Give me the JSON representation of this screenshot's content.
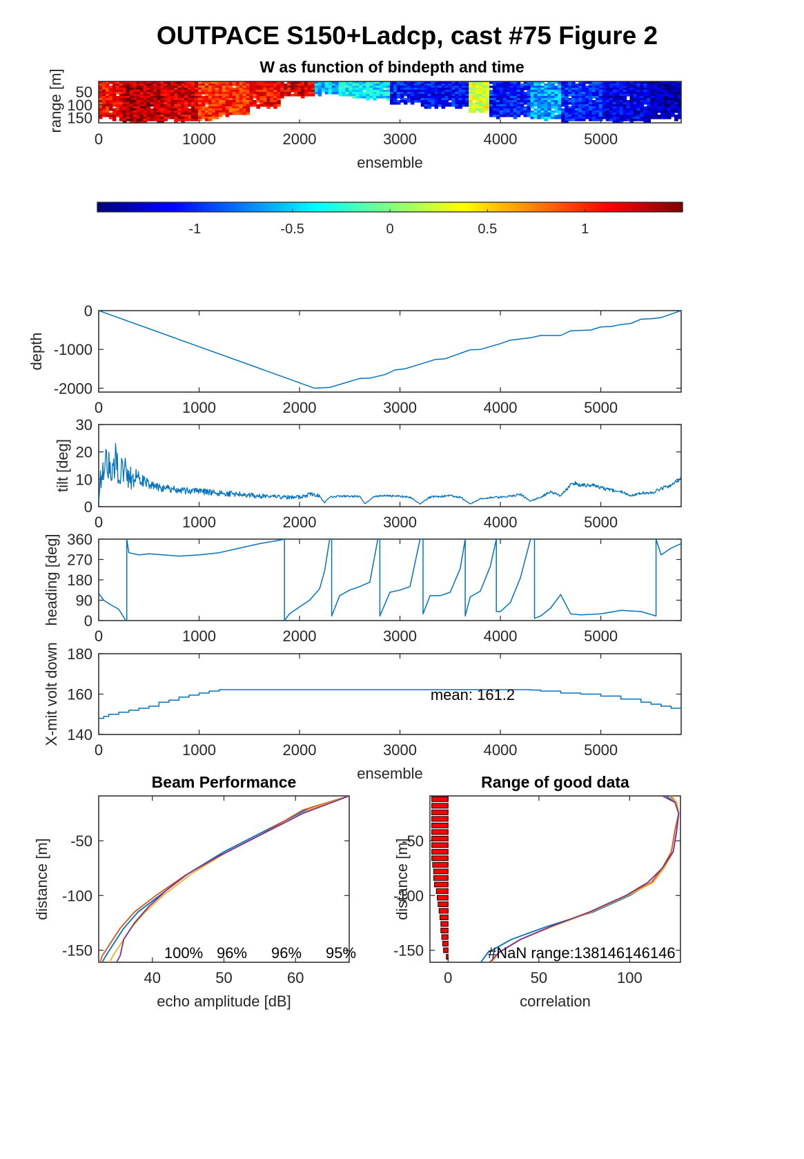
{
  "figure": {
    "title": "OUTPACE S150+Ladcp, cast #75 Figure 2",
    "colors": {
      "line": "#0072BD",
      "orange": "#D95319",
      "yellow": "#EDB120",
      "purple": "#7E2F8E",
      "bar": "#FF0000"
    }
  },
  "chart_data": [
    {
      "id": "w-bindepth-time",
      "type": "heatmap",
      "title": "W as function of bindepth and time",
      "xlabel": "ensemble",
      "ylabel": "range [m]",
      "xlim": [
        0,
        5800
      ],
      "ylim": [
        170,
        10
      ],
      "xticks": [
        0,
        1000,
        2000,
        3000,
        4000,
        5000
      ],
      "yticks": [
        50,
        100,
        150
      ],
      "colormap": "jet",
      "clim": [
        -1.5,
        1.5
      ],
      "colorbar_ticks": [
        -1,
        -0.5,
        0,
        0.5,
        1
      ],
      "columns": [
        {
          "x0": 0,
          "x1": 100,
          "w": 1.1,
          "bottom": 150
        },
        {
          "x0": 100,
          "x1": 250,
          "w": 1.15,
          "bottom": 160
        },
        {
          "x0": 250,
          "x1": 600,
          "w": 1.35,
          "bottom": 170
        },
        {
          "x0": 600,
          "x1": 1000,
          "w": 1.25,
          "bottom": 165
        },
        {
          "x0": 1000,
          "x1": 1200,
          "w": 1.0,
          "bottom": 158
        },
        {
          "x0": 1200,
          "x1": 1500,
          "w": 1.0,
          "bottom": 140
        },
        {
          "x0": 1500,
          "x1": 1800,
          "w": 1.1,
          "bottom": 110
        },
        {
          "x0": 1800,
          "x1": 2150,
          "w": 1.2,
          "bottom": 70
        },
        {
          "x0": 2150,
          "x1": 2400,
          "w": -0.6,
          "bottom": 60
        },
        {
          "x0": 2400,
          "x1": 2600,
          "w": -0.35,
          "bottom": 70
        },
        {
          "x0": 2600,
          "x1": 2900,
          "w": -0.45,
          "bottom": 80
        },
        {
          "x0": 2900,
          "x1": 3200,
          "w": -1.05,
          "bottom": 95
        },
        {
          "x0": 3200,
          "x1": 3700,
          "w": -1.1,
          "bottom": 115
        },
        {
          "x0": 3700,
          "x1": 3900,
          "w": 0.25,
          "bottom": 130
        },
        {
          "x0": 3900,
          "x1": 4300,
          "w": -1.05,
          "bottom": 150
        },
        {
          "x0": 4300,
          "x1": 4600,
          "w": -0.65,
          "bottom": 160
        },
        {
          "x0": 4600,
          "x1": 5000,
          "w": -1.0,
          "bottom": 165
        },
        {
          "x0": 5000,
          "x1": 5500,
          "w": -1.2,
          "bottom": 165
        },
        {
          "x0": 5500,
          "x1": 5800,
          "w": -1.35,
          "bottom": 155
        }
      ]
    },
    {
      "id": "depth",
      "type": "line",
      "xlabel": "",
      "ylabel": "depth",
      "xlim": [
        0,
        5800
      ],
      "ylim": [
        -2100,
        0
      ],
      "xticks": [
        0,
        1000,
        2000,
        3000,
        4000,
        5000
      ],
      "yticks": [
        0,
        -1000,
        -2000
      ],
      "x": [
        0,
        2150,
        2300,
        2600,
        2700,
        2850,
        2950,
        3050,
        3150,
        3350,
        3450,
        3700,
        3800,
        4000,
        4100,
        4300,
        4400,
        4600,
        4700,
        4900,
        5000,
        5100,
        5200,
        5300,
        5400,
        5500,
        5600,
        5700,
        5800
      ],
      "y": [
        0,
        -2000,
        -1980,
        -1750,
        -1740,
        -1650,
        -1530,
        -1500,
        -1420,
        -1260,
        -1240,
        -1010,
        -1000,
        -850,
        -760,
        -700,
        -640,
        -640,
        -520,
        -500,
        -420,
        -410,
        -360,
        -330,
        -220,
        -210,
        -180,
        -90,
        0
      ]
    },
    {
      "id": "tilt",
      "type": "line",
      "xlabel": "",
      "ylabel": "tilt [deg]",
      "xlim": [
        0,
        5800
      ],
      "ylim": [
        0,
        30
      ],
      "xticks": [
        0,
        1000,
        2000,
        3000,
        4000,
        5000
      ],
      "yticks": [
        0,
        10,
        20,
        30
      ],
      "x": [
        0,
        20,
        60,
        100,
        150,
        200,
        300,
        400,
        500,
        600,
        800,
        1000,
        1200,
        1400,
        1600,
        1800,
        2000,
        2100,
        2180,
        2250,
        2300,
        2400,
        2600,
        2650,
        2750,
        2800,
        2900,
        3100,
        3200,
        3300,
        3500,
        3600,
        3700,
        3800,
        4000,
        4100,
        4200,
        4300,
        4400,
        4500,
        4600,
        4700,
        4750,
        4800,
        4900,
        5000,
        5100,
        5200,
        5300,
        5400,
        5500,
        5600,
        5700,
        5800
      ],
      "y": [
        2,
        12,
        15,
        16,
        17,
        15,
        12,
        10,
        8.5,
        7,
        6,
        5.5,
        5,
        4.5,
        4,
        3.5,
        3.5,
        4.5,
        4.5,
        1.5,
        3.5,
        3.8,
        3.8,
        1,
        3.8,
        4,
        4,
        3.5,
        1,
        3.5,
        4,
        3.5,
        1,
        3,
        3.5,
        3.8,
        4.5,
        2,
        3.5,
        5.5,
        4,
        8,
        8.5,
        8,
        8,
        7,
        6,
        5.5,
        4,
        5,
        5,
        6.5,
        8,
        10
      ]
    },
    {
      "id": "heading",
      "type": "line",
      "xlabel": "",
      "ylabel": "heading [deg]",
      "xlim": [
        0,
        5800
      ],
      "ylim": [
        0,
        360
      ],
      "xticks": [
        0,
        1000,
        2000,
        3000,
        4000,
        5000
      ],
      "yticks": [
        0,
        90,
        180,
        270,
        360
      ],
      "x": [
        0,
        50,
        100,
        200,
        270,
        280,
        280,
        300,
        400,
        500,
        800,
        1000,
        1200,
        1400,
        1600,
        1800,
        1850,
        1850,
        1900,
        2000,
        2100,
        2200,
        2250,
        2300,
        2320,
        2320,
        2400,
        2500,
        2600,
        2700,
        2780,
        2800,
        2800,
        2900,
        3000,
        3100,
        3200,
        3230,
        3230,
        3300,
        3400,
        3500,
        3600,
        3650,
        3650,
        3700,
        3800,
        3900,
        3960,
        3960,
        4000,
        4100,
        4200,
        4300,
        4340,
        4340,
        4400,
        4500,
        4600,
        4700,
        4800,
        5000,
        5200,
        5400,
        5550,
        5550,
        5600,
        5700,
        5800
      ],
      "y": [
        120,
        90,
        75,
        50,
        0,
        0,
        360,
        300,
        290,
        295,
        285,
        290,
        300,
        320,
        340,
        355,
        360,
        0,
        30,
        60,
        90,
        140,
        220,
        360,
        360,
        20,
        110,
        135,
        150,
        170,
        360,
        360,
        20,
        125,
        135,
        150,
        360,
        360,
        30,
        110,
        110,
        125,
        230,
        360,
        20,
        105,
        130,
        240,
        360,
        40,
        40,
        80,
        190,
        360,
        360,
        10,
        20,
        55,
        115,
        30,
        25,
        30,
        45,
        40,
        20,
        360,
        290,
        320,
        340
      ]
    },
    {
      "id": "xmit-volt",
      "type": "line",
      "xlabel": "ensemble",
      "ylabel": "X-mit volt down",
      "annotation": "mean: 161.2",
      "xlim": [
        0,
        5800
      ],
      "ylim": [
        140,
        180
      ],
      "xticks": [
        0,
        1000,
        2000,
        3000,
        4000,
        5000
      ],
      "yticks": [
        140,
        160,
        180
      ],
      "x": [
        0,
        50,
        100,
        200,
        300,
        400,
        500,
        600,
        700,
        800,
        900,
        1000,
        1100,
        1200,
        1500,
        2000,
        2500,
        3000,
        3500,
        4000,
        4300,
        4400,
        4600,
        4800,
        5000,
        5200,
        5400,
        5500,
        5600,
        5700,
        5800
      ],
      "y": [
        148,
        149,
        150,
        151,
        152,
        153,
        154,
        156,
        157,
        158.5,
        159.5,
        160.5,
        161.5,
        162.2,
        162.2,
        162.2,
        162.2,
        162.2,
        162.2,
        162.2,
        162,
        161.5,
        160.5,
        160,
        159,
        157.5,
        156,
        155,
        154,
        153,
        151.5
      ]
    },
    {
      "id": "beam-performance",
      "type": "line",
      "title": "Beam Performance",
      "xlabel": "echo amplitude [dB]",
      "ylabel": "distance [m]",
      "xlim": [
        32.5,
        67.5
      ],
      "ylim": [
        -161,
        -9
      ],
      "xticks": [
        40,
        50,
        60
      ],
      "yticks": [
        -50,
        -100,
        -150
      ],
      "labels": [
        "100%",
        "96%",
        "96%",
        "95%"
      ],
      "series": [
        {
          "color_key": "line",
          "x": [
            67.5,
            62,
            56,
            50,
            45,
            41,
            38,
            36,
            34.5,
            33.5,
            33
          ],
          "y": [
            -9,
            -20,
            -40,
            -60,
            -80,
            -100,
            -115,
            -130,
            -145,
            -155,
            -161
          ]
        },
        {
          "color_key": "orange",
          "x": [
            67.5,
            61,
            55,
            49,
            44.5,
            40.5,
            37.5,
            35.5,
            34,
            33,
            32.7
          ],
          "y": [
            -9,
            -22,
            -45,
            -65,
            -82,
            -100,
            -115,
            -130,
            -145,
            -155,
            -161
          ]
        },
        {
          "color_key": "yellow",
          "x": [
            67.5,
            62.5,
            56.5,
            50.5,
            45.5,
            41.5,
            39,
            37,
            35.5,
            34.5,
            34
          ],
          "y": [
            -9,
            -20,
            -40,
            -60,
            -80,
            -100,
            -115,
            -130,
            -145,
            -155,
            -161
          ]
        },
        {
          "color_key": "purple",
          "x": [
            67.5,
            61,
            55,
            49,
            45,
            42,
            39.5,
            37.5,
            36,
            35.5,
            35
          ],
          "y": [
            -9,
            -25,
            -45,
            -65,
            -80,
            -95,
            -110,
            -125,
            -140,
            -155,
            -161
          ]
        }
      ]
    },
    {
      "id": "range-good-data",
      "type": "line",
      "title": "Range of good data",
      "xlabel": "correlation",
      "ylabel": "distance [m]",
      "annotation": "#NaN range:138146146146",
      "xlim": [
        -10,
        128
      ],
      "ylim": [
        -161,
        -9
      ],
      "xticks": [
        0,
        50,
        100
      ],
      "yticks": [
        -50,
        -100,
        -150
      ],
      "bars": {
        "y": [
          -12,
          -18,
          -24,
          -30,
          -36,
          -42,
          -48,
          -54,
          -60,
          -66,
          -72,
          -78,
          -84,
          -90,
          -96,
          -102,
          -108,
          -114,
          -120,
          -126,
          -132,
          -138,
          -144,
          -150,
          -156
        ],
        "x": [
          -9,
          -9,
          -9,
          -9,
          -9,
          -9,
          -9,
          -9,
          -9,
          -9,
          -8.5,
          -8,
          -8,
          -7.5,
          -6.5,
          -6,
          -5.5,
          -5,
          -4.5,
          -4,
          -4,
          -3.5,
          -3,
          -2.5,
          -1
        ]
      },
      "series": [
        {
          "color_key": "line",
          "x": [
            120,
            125,
            127,
            126,
            124,
            118,
            112,
            100,
            80,
            55,
            35,
            22,
            18
          ],
          "y": [
            -9,
            -15,
            -25,
            -40,
            -60,
            -75,
            -88,
            -100,
            -115,
            -128,
            -140,
            -152,
            -161
          ]
        },
        {
          "color_key": "orange",
          "x": [
            122,
            126,
            127,
            125,
            123,
            118,
            112,
            98,
            78,
            58,
            40,
            28,
            24
          ],
          "y": [
            -9,
            -15,
            -25,
            -40,
            -60,
            -75,
            -88,
            -100,
            -115,
            -128,
            -140,
            -152,
            -161
          ]
        },
        {
          "color_key": "yellow",
          "x": [
            123,
            126,
            127,
            126,
            124,
            119,
            113,
            99,
            79,
            58,
            40,
            28,
            24
          ],
          "y": [
            -9,
            -15,
            -25,
            -40,
            -60,
            -75,
            -88,
            -100,
            -115,
            -128,
            -140,
            -152,
            -161
          ]
        },
        {
          "color_key": "purple",
          "x": [
            118,
            125,
            127,
            126,
            124,
            118,
            110,
            98,
            78,
            57,
            40,
            28,
            23
          ],
          "y": [
            -9,
            -15,
            -25,
            -40,
            -60,
            -75,
            -88,
            -100,
            -115,
            -128,
            -140,
            -152,
            -161
          ]
        }
      ]
    }
  ]
}
